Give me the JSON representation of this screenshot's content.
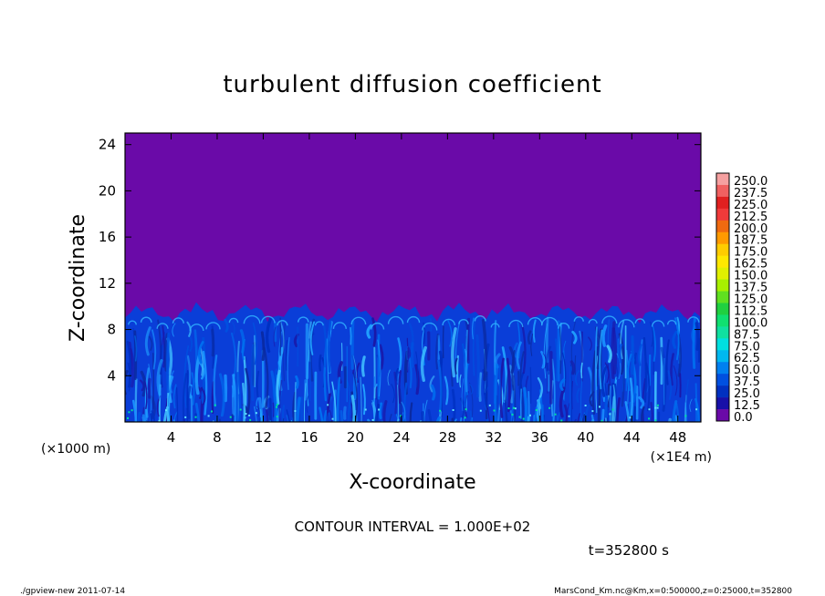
{
  "chart_data": {
    "type": "heatmap",
    "title": "turbulent diffusion coefficient",
    "xlabel": "X-coordinate",
    "ylabel": "Z-coordinate",
    "x_unit_left": "(×1000 m)",
    "x_unit_right": "(×1E4 m)",
    "xlim": [
      0,
      50
    ],
    "ylim": [
      0,
      25
    ],
    "x_ticks": [
      4,
      8,
      12,
      16,
      20,
      24,
      28,
      32,
      36,
      40,
      44,
      48
    ],
    "y_ticks": [
      4,
      8,
      12,
      16,
      20,
      24
    ],
    "x_tick_labels": [
      "4",
      "8",
      "12",
      "16",
      "20",
      "24",
      "28",
      "32",
      "36",
      "40",
      "44",
      "48"
    ],
    "y_tick_labels": [
      "4",
      "8",
      "12",
      "16",
      "20",
      "24"
    ],
    "turbulent_layer_top": 9.5,
    "colorbar": {
      "levels": [
        "250.0",
        "237.5",
        "225.0",
        "212.5",
        "200.0",
        "187.5",
        "175.0",
        "162.5",
        "150.0",
        "137.5",
        "125.0",
        "112.5",
        "100.0",
        "87.5",
        "75.0",
        "62.5",
        "50.0",
        "37.5",
        "25.0",
        "12.5",
        "0.0"
      ],
      "colors": [
        "#f5a0a0",
        "#f06060",
        "#e02020",
        "#f03a3a",
        "#f06a10",
        "#ff9a00",
        "#ffcc00",
        "#ffe800",
        "#e0f000",
        "#a8f000",
        "#60e020",
        "#20d040",
        "#10e070",
        "#10e0a0",
        "#00e0e0",
        "#00b8f0",
        "#0080f0",
        "#0050e0",
        "#0030c0",
        "#1810a8",
        "#6a0aa8"
      ]
    },
    "annotation": "CONTOUR INTERVAL = 1.000E+02",
    "time_label": "t=352800 s",
    "footer_left": "./gpview-new  2011-07-14",
    "footer_right": "MarsCond_Km.nc@Km,x=0:500000,z=0:25000,t=352800"
  }
}
